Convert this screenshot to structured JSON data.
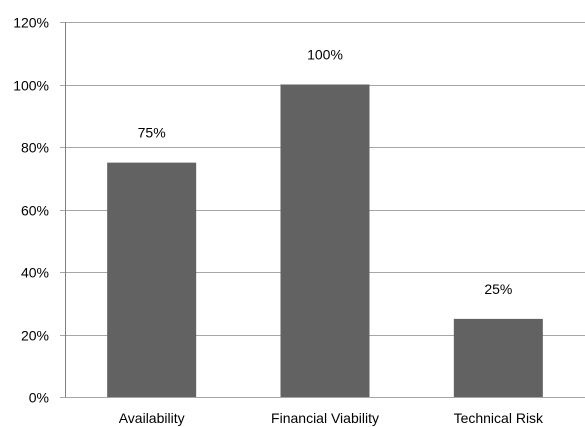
{
  "chart_data": {
    "type": "bar",
    "categories": [
      "Availability",
      "Financial Viability",
      "Technical Risk"
    ],
    "values": [
      75,
      100,
      25
    ],
    "data_labels": [
      "75%",
      "100%",
      "25%"
    ],
    "y_tick_labels": [
      "0%",
      "20%",
      "40%",
      "60%",
      "80%",
      "100%",
      "120%"
    ],
    "ylim": [
      0,
      120
    ],
    "y_unit": "%",
    "title": "",
    "xlabel": "",
    "ylabel": "",
    "grid": "horizontal",
    "legend": "none",
    "bar_color": "#626262"
  }
}
